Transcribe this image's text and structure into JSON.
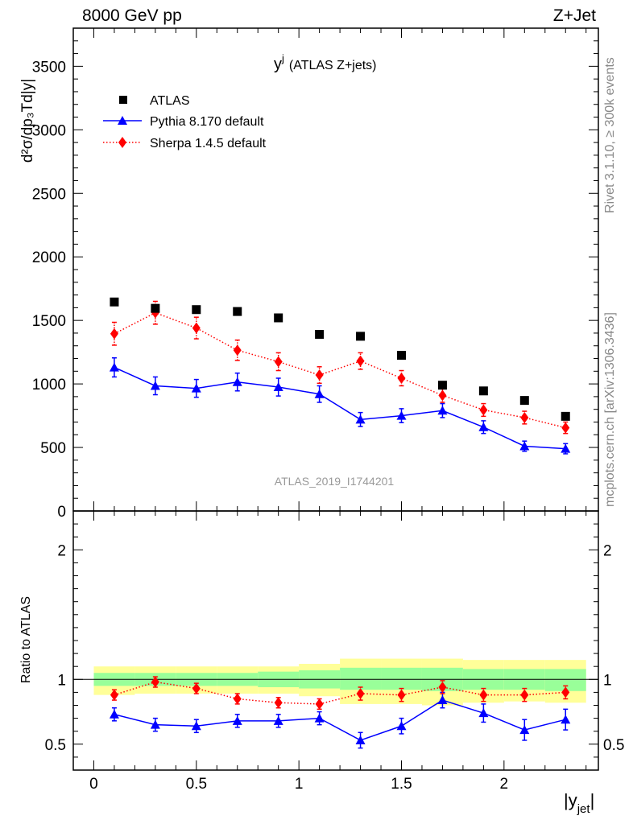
{
  "header": {
    "left_title": "8000 GeV pp",
    "right_title": "Z+Jet"
  },
  "side_labels": {
    "rivet": "Rivet 3.1.10, ≥ 300k events",
    "mcplots": "mcplots.cern.ch [arXiv:1306.3436]"
  },
  "chart_data": {
    "type": "scatter",
    "title": "y",
    "title_superscript": "j",
    "title_suffix": "(ATLAS Z+jets)",
    "watermark": "ATLAS_2019_I1744201",
    "ylabel_main": "d²σ/dp₃Td|y|",
    "ylabel_ratio": "Ratio to ATLAS",
    "xlabel": "|y",
    "xlabel_subscript": "jet",
    "xlabel_close": "|",
    "xlim": [
      -0.1,
      2.46
    ],
    "ylim_main": [
      0,
      3800
    ],
    "ylim_ratio": [
      0.3,
      2.3
    ],
    "x_ticks": [
      0,
      0.5,
      1,
      1.5,
      2
    ],
    "x_tick_labels": [
      "0",
      "0.5",
      "1",
      "1.5",
      "2"
    ],
    "y_ticks_main": [
      0,
      500,
      1000,
      1500,
      2000,
      2500,
      3000,
      3500
    ],
    "y_tick_labels_main": [
      "0",
      "500",
      "1000",
      "1500",
      "2000",
      "2500",
      "3000",
      "3500"
    ],
    "y_ticks_ratio": [
      0.5,
      1,
      2
    ],
    "y_tick_labels_ratio": [
      "0.5",
      "1",
      "2"
    ],
    "x": [
      0.1,
      0.3,
      0.5,
      0.7,
      0.9,
      1.1,
      1.3,
      1.5,
      1.7,
      1.9,
      2.1,
      2.3
    ],
    "legend_position": "top-left",
    "series": [
      {
        "name": "ATLAS",
        "color": "#000000",
        "marker": "square",
        "values": [
          1645,
          1595,
          1585,
          1570,
          1520,
          1390,
          1375,
          1225,
          990,
          945,
          870,
          745
        ],
        "band_edges": [
          0,
          0.2,
          0.4,
          0.6,
          0.8,
          1.0,
          1.2,
          1.4,
          1.6,
          1.8,
          2.0,
          2.2,
          2.4
        ],
        "band_yellow": [
          [
            0.88,
            1.1
          ],
          [
            0.89,
            1.1
          ],
          [
            0.89,
            1.1
          ],
          [
            0.89,
            1.1
          ],
          [
            0.89,
            1.1
          ],
          [
            0.87,
            1.12
          ],
          [
            0.81,
            1.16
          ],
          [
            0.81,
            1.16
          ],
          [
            0.8,
            1.16
          ],
          [
            0.82,
            1.15
          ],
          [
            0.83,
            1.15
          ],
          [
            0.82,
            1.15
          ]
        ],
        "band_green": [
          [
            0.95,
            1.05
          ],
          [
            0.95,
            1.05
          ],
          [
            0.95,
            1.05
          ],
          [
            0.95,
            1.05
          ],
          [
            0.94,
            1.06
          ],
          [
            0.93,
            1.07
          ],
          [
            0.92,
            1.09
          ],
          [
            0.92,
            1.09
          ],
          [
            0.91,
            1.09
          ],
          [
            0.92,
            1.08
          ],
          [
            0.92,
            1.08
          ],
          [
            0.91,
            1.08
          ]
        ]
      },
      {
        "name": "Pythia 8.170 default",
        "color": "#0000ff",
        "marker": "triangle",
        "line": "solid",
        "values": [
          1130,
          985,
          965,
          1015,
          975,
          920,
          720,
          750,
          790,
          660,
          510,
          490
        ],
        "errors": [
          75,
          70,
          70,
          70,
          70,
          65,
          55,
          55,
          55,
          50,
          40,
          40
        ],
        "ratio": [
          0.73,
          0.65,
          0.64,
          0.68,
          0.68,
          0.7,
          0.53,
          0.64,
          0.84,
          0.74,
          0.61,
          0.69
        ],
        "ratio_errors": [
          0.05,
          0.05,
          0.05,
          0.05,
          0.05,
          0.05,
          0.06,
          0.06,
          0.06,
          0.07,
          0.08,
          0.08
        ]
      },
      {
        "name": "Sherpa 1.4.5 default",
        "color": "#ff0000",
        "marker": "diamond",
        "line": "dotted",
        "values": [
          1395,
          1560,
          1440,
          1265,
          1175,
          1070,
          1180,
          1045,
          910,
          795,
          735,
          655
        ],
        "errors": [
          90,
          90,
          85,
          80,
          70,
          65,
          65,
          60,
          55,
          50,
          50,
          45
        ],
        "ratio": [
          0.88,
          0.98,
          0.93,
          0.85,
          0.82,
          0.81,
          0.89,
          0.88,
          0.94,
          0.88,
          0.88,
          0.9
        ],
        "ratio_errors": [
          0.04,
          0.04,
          0.04,
          0.04,
          0.04,
          0.04,
          0.05,
          0.05,
          0.05,
          0.05,
          0.05,
          0.05
        ]
      }
    ]
  }
}
